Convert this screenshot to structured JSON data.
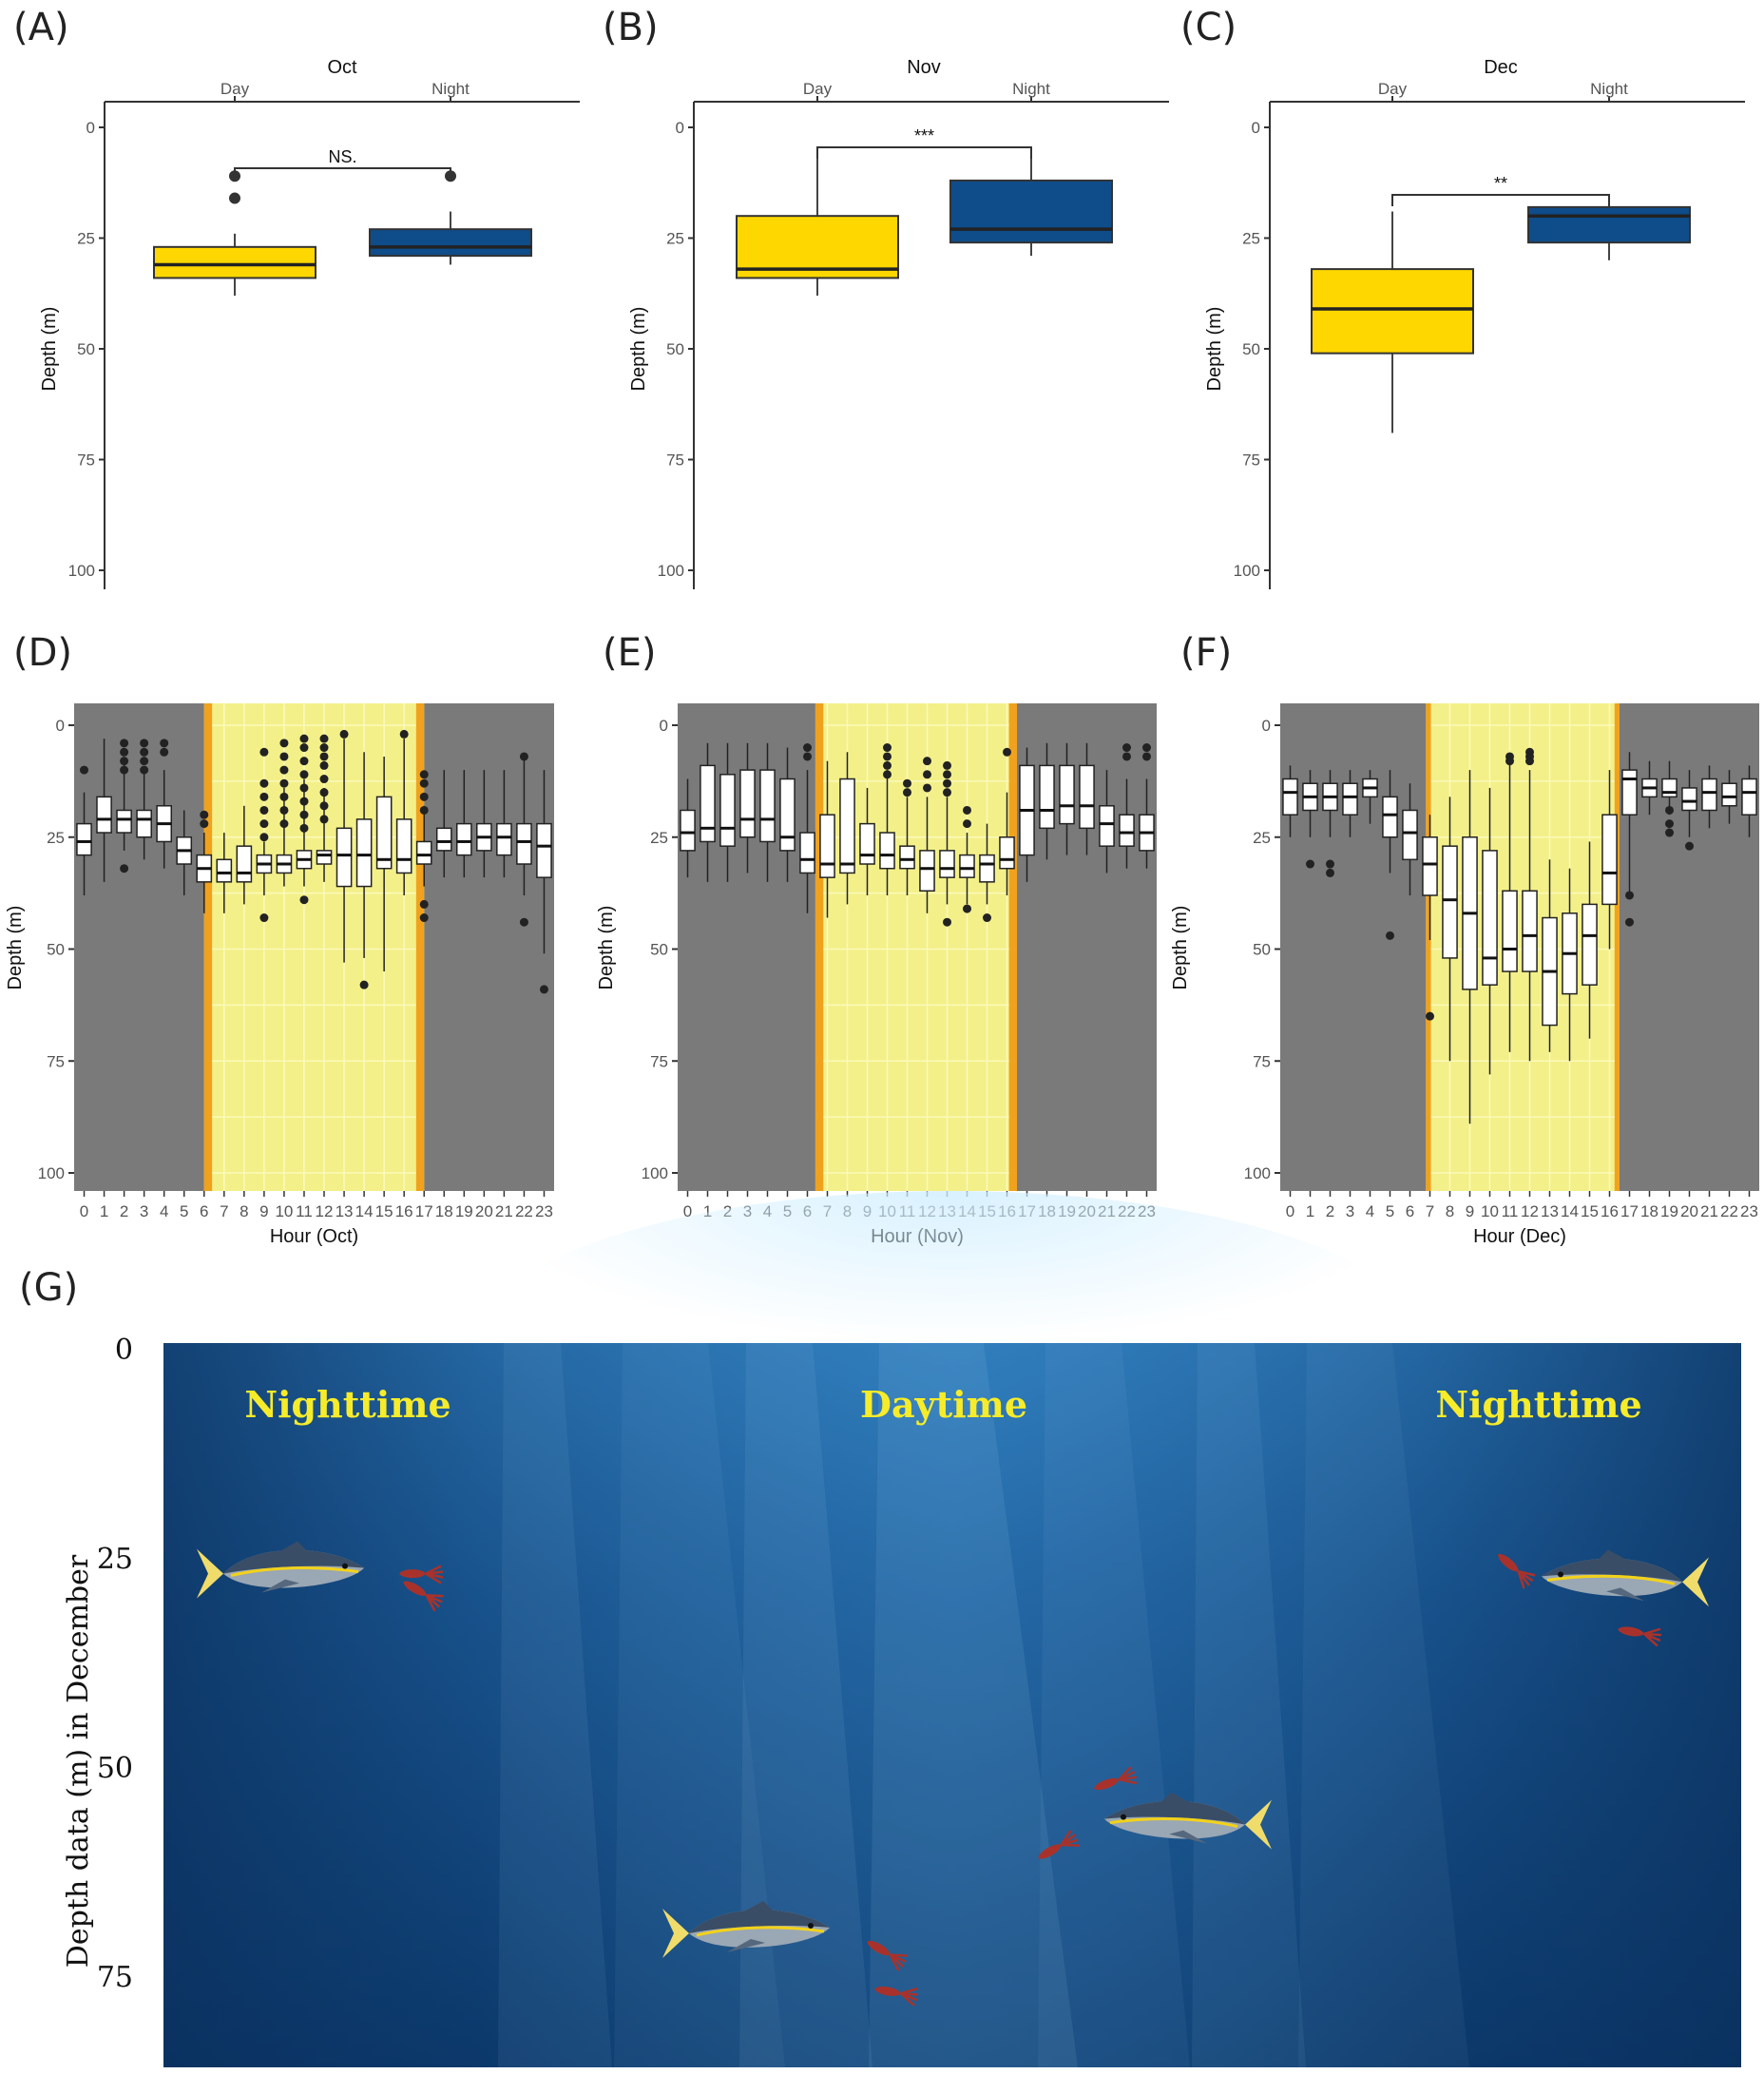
{
  "chart_data": [
    {
      "panel": "(A)",
      "type": "box",
      "title": "Oct",
      "categories": [
        "Day",
        "Night"
      ],
      "ylabel": "Depth (m)",
      "ylim": [
        0,
        100
      ],
      "yticks": [
        0,
        25,
        50,
        75,
        100
      ],
      "colors": [
        "#FFD700",
        "#0F4C8A"
      ],
      "significance": "NS.",
      "boxes": [
        {
          "q1": 27,
          "median": 31,
          "q3": 34,
          "whisker_low": 24,
          "whisker_high": 38,
          "outliers": [
            11,
            16
          ]
        },
        {
          "q1": 23,
          "median": 27,
          "q3": 29,
          "whisker_low": 19,
          "whisker_high": 31,
          "outliers": [
            11
          ]
        }
      ]
    },
    {
      "panel": "(B)",
      "type": "box",
      "title": "Nov",
      "categories": [
        "Day",
        "Night"
      ],
      "ylabel": "Depth (m)",
      "ylim": [
        0,
        100
      ],
      "yticks": [
        0,
        25,
        50,
        75,
        100
      ],
      "colors": [
        "#FFD700",
        "#0F4C8A"
      ],
      "significance": "***",
      "boxes": [
        {
          "q1": 20,
          "median": 32,
          "q3": 34,
          "whisker_low": 7,
          "whisker_high": 38,
          "outliers": []
        },
        {
          "q1": 12,
          "median": 23,
          "q3": 26,
          "whisker_low": 6,
          "whisker_high": 29,
          "outliers": []
        }
      ]
    },
    {
      "panel": "(C)",
      "type": "box",
      "title": "Dec",
      "categories": [
        "Day",
        "Night"
      ],
      "ylabel": "Depth (m)",
      "ylim": [
        0,
        100
      ],
      "yticks": [
        0,
        25,
        50,
        75,
        100
      ],
      "colors": [
        "#FFD700",
        "#0F4C8A"
      ],
      "significance": "**",
      "boxes": [
        {
          "q1": 32,
          "median": 41,
          "q3": 51,
          "whisker_low": 19,
          "whisker_high": 69,
          "outliers": []
        },
        {
          "q1": 18,
          "median": 20,
          "q3": 26,
          "whisker_low": 17,
          "whisker_high": 30,
          "outliers": []
        }
      ]
    },
    {
      "panel": "(D)",
      "type": "box",
      "xlabel": "Hour (Oct)",
      "ylabel": "Depth (m)",
      "ylim": [
        0,
        100
      ],
      "yticks": [
        0,
        25,
        50,
        75,
        100
      ],
      "categories": [
        "0",
        "1",
        "2",
        "3",
        "4",
        "5",
        "6",
        "7",
        "8",
        "9",
        "10",
        "11",
        "12",
        "13",
        "14",
        "15",
        "16",
        "17",
        "18",
        "19",
        "20",
        "21",
        "22",
        "23"
      ],
      "daylight_hours": [
        6.5,
        17.5
      ],
      "twilight_width_hours": 0.4,
      "boxes": [
        {
          "q1": 22,
          "median": 26,
          "q3": 29,
          "whisker_low": 15,
          "whisker_high": 38,
          "outliers": [
            10
          ]
        },
        {
          "q1": 16,
          "median": 21,
          "q3": 24,
          "whisker_low": 3,
          "whisker_high": 35,
          "outliers": []
        },
        {
          "q1": 19,
          "median": 21,
          "q3": 24,
          "whisker_low": 8,
          "whisker_high": 28,
          "outliers": [
            4,
            6,
            8,
            10,
            32
          ]
        },
        {
          "q1": 19,
          "median": 21,
          "q3": 25,
          "whisker_low": 10,
          "whisker_high": 30,
          "outliers": [
            4,
            6,
            8,
            10
          ]
        },
        {
          "q1": 18,
          "median": 22,
          "q3": 26,
          "whisker_low": 10,
          "whisker_high": 32,
          "outliers": [
            4,
            6
          ]
        },
        {
          "q1": 25,
          "median": 28,
          "q3": 31,
          "whisker_low": 19,
          "whisker_high": 38,
          "outliers": []
        },
        {
          "q1": 29,
          "median": 32,
          "q3": 35,
          "whisker_low": 24,
          "whisker_high": 42,
          "outliers": [
            20,
            22
          ]
        },
        {
          "q1": 30,
          "median": 33,
          "q3": 35,
          "whisker_low": 24,
          "whisker_high": 42,
          "outliers": []
        },
        {
          "q1": 27,
          "median": 33,
          "q3": 35,
          "whisker_low": 18,
          "whisker_high": 40,
          "outliers": []
        },
        {
          "q1": 29,
          "median": 31,
          "q3": 33,
          "whisker_low": 26,
          "whisker_high": 38,
          "outliers": [
            6,
            13,
            16,
            19,
            22,
            25,
            43
          ]
        },
        {
          "q1": 29,
          "median": 31,
          "q3": 33,
          "whisker_low": 14,
          "whisker_high": 36,
          "outliers": [
            4,
            7,
            10,
            13,
            16,
            19,
            22
          ]
        },
        {
          "q1": 28,
          "median": 30,
          "q3": 32,
          "whisker_low": 12,
          "whisker_high": 36,
          "outliers": [
            3,
            5,
            8,
            11,
            14,
            17,
            20,
            23,
            39
          ]
        },
        {
          "q1": 28,
          "median": 29,
          "q3": 31,
          "whisker_low": 14,
          "whisker_high": 35,
          "outliers": [
            3,
            5,
            7,
            9,
            12,
            15,
            18,
            21
          ]
        },
        {
          "q1": 23,
          "median": 29,
          "q3": 36,
          "whisker_low": 3,
          "whisker_high": 53,
          "outliers": [
            2
          ]
        },
        {
          "q1": 21,
          "median": 29,
          "q3": 36,
          "whisker_low": 6,
          "whisker_high": 52,
          "outliers": [
            58
          ]
        },
        {
          "q1": 16,
          "median": 30,
          "q3": 32,
          "whisker_low": 7,
          "whisker_high": 55,
          "outliers": []
        },
        {
          "q1": 21,
          "median": 30,
          "q3": 33,
          "whisker_low": 3,
          "whisker_high": 38,
          "outliers": [
            2
          ]
        },
        {
          "q1": 26,
          "median": 29,
          "q3": 31,
          "whisker_low": 18,
          "whisker_high": 36,
          "outliers": [
            11,
            13,
            16,
            19,
            40,
            43
          ]
        },
        {
          "q1": 23,
          "median": 26,
          "q3": 28,
          "whisker_low": 10,
          "whisker_high": 34,
          "outliers": []
        },
        {
          "q1": 22,
          "median": 26,
          "q3": 29,
          "whisker_low": 10,
          "whisker_high": 34,
          "outliers": []
        },
        {
          "q1": 22,
          "median": 25,
          "q3": 28,
          "whisker_low": 10,
          "whisker_high": 34,
          "outliers": []
        },
        {
          "q1": 22,
          "median": 25,
          "q3": 29,
          "whisker_low": 10,
          "whisker_high": 34,
          "outliers": []
        },
        {
          "q1": 22,
          "median": 26,
          "q3": 31,
          "whisker_low": 7,
          "whisker_high": 38,
          "outliers": [
            7,
            44
          ]
        },
        {
          "q1": 22,
          "median": 27,
          "q3": 34,
          "whisker_low": 10,
          "whisker_high": 51,
          "outliers": [
            59
          ]
        }
      ]
    },
    {
      "panel": "(E)",
      "type": "box",
      "xlabel": "Hour (Nov)",
      "ylabel": "Depth (m)",
      "ylim": [
        0,
        100
      ],
      "yticks": [
        0,
        25,
        50,
        75,
        100
      ],
      "categories": [
        "0",
        "1",
        "2",
        "3",
        "4",
        "5",
        "6",
        "7",
        "8",
        "9",
        "10",
        "11",
        "12",
        "13",
        "14",
        "15",
        "16",
        "17",
        "18",
        "19",
        "20",
        "21",
        "22",
        "23"
      ],
      "daylight_hours": [
        6.9,
        17.0
      ],
      "twilight_width_hours": 0.4,
      "boxes": [
        {
          "q1": 19,
          "median": 24,
          "q3": 28,
          "whisker_low": 12,
          "whisker_high": 34,
          "outliers": []
        },
        {
          "q1": 9,
          "median": 23,
          "q3": 26,
          "whisker_low": 4,
          "whisker_high": 35,
          "outliers": []
        },
        {
          "q1": 11,
          "median": 23,
          "q3": 27,
          "whisker_low": 4,
          "whisker_high": 35,
          "outliers": []
        },
        {
          "q1": 10,
          "median": 21,
          "q3": 25,
          "whisker_low": 4,
          "whisker_high": 33,
          "outliers": []
        },
        {
          "q1": 10,
          "median": 21,
          "q3": 26,
          "whisker_low": 4,
          "whisker_high": 35,
          "outliers": []
        },
        {
          "q1": 12,
          "median": 25,
          "q3": 28,
          "whisker_low": 5,
          "whisker_high": 35,
          "outliers": []
        },
        {
          "q1": 24,
          "median": 30,
          "q3": 33,
          "whisker_low": 10,
          "whisker_high": 42,
          "outliers": [
            5,
            7
          ]
        },
        {
          "q1": 20,
          "median": 31,
          "q3": 34,
          "whisker_low": 8,
          "whisker_high": 43,
          "outliers": []
        },
        {
          "q1": 12,
          "median": 31,
          "q3": 33,
          "whisker_low": 6,
          "whisker_high": 40,
          "outliers": []
        },
        {
          "q1": 22,
          "median": 29,
          "q3": 31,
          "whisker_low": 14,
          "whisker_high": 38,
          "outliers": []
        },
        {
          "q1": 24,
          "median": 29,
          "q3": 32,
          "whisker_low": 10,
          "whisker_high": 38,
          "outliers": [
            5,
            7,
            9,
            11
          ]
        },
        {
          "q1": 27,
          "median": 30,
          "q3": 32,
          "whisker_low": 16,
          "whisker_high": 38,
          "outliers": [
            13,
            15
          ]
        },
        {
          "q1": 28,
          "median": 32,
          "q3": 37,
          "whisker_low": 16,
          "whisker_high": 42,
          "outliers": [
            8,
            11,
            14
          ]
        },
        {
          "q1": 28,
          "median": 32,
          "q3": 34,
          "whisker_low": 16,
          "whisker_high": 40,
          "outliers": [
            9,
            11,
            13,
            15,
            44
          ]
        },
        {
          "q1": 29,
          "median": 32,
          "q3": 34,
          "whisker_low": 24,
          "whisker_high": 40,
          "outliers": [
            19,
            22,
            41
          ]
        },
        {
          "q1": 29,
          "median": 31,
          "q3": 35,
          "whisker_low": 22,
          "whisker_high": 40,
          "outliers": [
            43
          ]
        },
        {
          "q1": 25,
          "median": 30,
          "q3": 32,
          "whisker_low": 15,
          "whisker_high": 38,
          "outliers": [
            6
          ]
        },
        {
          "q1": 9,
          "median": 19,
          "q3": 29,
          "whisker_low": 5,
          "whisker_high": 35,
          "outliers": []
        },
        {
          "q1": 9,
          "median": 19,
          "q3": 23,
          "whisker_low": 4,
          "whisker_high": 30,
          "outliers": []
        },
        {
          "q1": 9,
          "median": 18,
          "q3": 22,
          "whisker_low": 4,
          "whisker_high": 29,
          "outliers": []
        },
        {
          "q1": 9,
          "median": 18,
          "q3": 23,
          "whisker_low": 4,
          "whisker_high": 29,
          "outliers": []
        },
        {
          "q1": 18,
          "median": 22,
          "q3": 27,
          "whisker_low": 10,
          "whisker_high": 33,
          "outliers": []
        },
        {
          "q1": 20,
          "median": 24,
          "q3": 27,
          "whisker_low": 12,
          "whisker_high": 32,
          "outliers": [
            5,
            7
          ]
        },
        {
          "q1": 20,
          "median": 24,
          "q3": 28,
          "whisker_low": 12,
          "whisker_high": 32,
          "outliers": [
            5,
            7
          ]
        }
      ]
    },
    {
      "panel": "(F)",
      "type": "box",
      "xlabel": "Hour (Dec)",
      "ylabel": "Depth (m)",
      "ylim": [
        0,
        100
      ],
      "yticks": [
        0,
        25,
        50,
        75,
        100
      ],
      "categories": [
        "0",
        "1",
        "2",
        "3",
        "4",
        "5",
        "6",
        "7",
        "8",
        "9",
        "10",
        "11",
        "12",
        "13",
        "14",
        "15",
        "16",
        "17",
        "18",
        "19",
        "20",
        "21",
        "22",
        "23"
      ],
      "daylight_hours": [
        7.3,
        17.0
      ],
      "twilight_width_hours": 0.25,
      "boxes": [
        {
          "q1": 12,
          "median": 15,
          "q3": 20,
          "whisker_low": 9,
          "whisker_high": 25,
          "outliers": []
        },
        {
          "q1": 13,
          "median": 16,
          "q3": 19,
          "whisker_low": 10,
          "whisker_high": 25,
          "outliers": [
            31
          ]
        },
        {
          "q1": 13,
          "median": 16,
          "q3": 19,
          "whisker_low": 10,
          "whisker_high": 25,
          "outliers": [
            31,
            33
          ]
        },
        {
          "q1": 13,
          "median": 16,
          "q3": 20,
          "whisker_low": 10,
          "whisker_high": 25,
          "outliers": []
        },
        {
          "q1": 12,
          "median": 14,
          "q3": 16,
          "whisker_low": 10,
          "whisker_high": 22,
          "outliers": []
        },
        {
          "q1": 16,
          "median": 20,
          "q3": 25,
          "whisker_low": 10,
          "whisker_high": 33,
          "outliers": [
            47
          ]
        },
        {
          "q1": 19,
          "median": 24,
          "q3": 30,
          "whisker_low": 13,
          "whisker_high": 38,
          "outliers": []
        },
        {
          "q1": 25,
          "median": 31,
          "q3": 38,
          "whisker_low": 20,
          "whisker_high": 48,
          "outliers": [
            65
          ]
        },
        {
          "q1": 27,
          "median": 39,
          "q3": 52,
          "whisker_low": 16,
          "whisker_high": 75,
          "outliers": []
        },
        {
          "q1": 25,
          "median": 42,
          "q3": 59,
          "whisker_low": 10,
          "whisker_high": 89,
          "outliers": []
        },
        {
          "q1": 28,
          "median": 52,
          "q3": 58,
          "whisker_low": 14,
          "whisker_high": 78,
          "outliers": []
        },
        {
          "q1": 37,
          "median": 50,
          "q3": 55,
          "whisker_low": 8,
          "whisker_high": 73,
          "outliers": [
            7,
            8
          ]
        },
        {
          "q1": 37,
          "median": 47,
          "q3": 55,
          "whisker_low": 10,
          "whisker_high": 75,
          "outliers": [
            6,
            7,
            8
          ]
        },
        {
          "q1": 43,
          "median": 55,
          "q3": 67,
          "whisker_low": 30,
          "whisker_high": 73,
          "outliers": []
        },
        {
          "q1": 42,
          "median": 51,
          "q3": 60,
          "whisker_low": 32,
          "whisker_high": 75,
          "outliers": []
        },
        {
          "q1": 40,
          "median": 47,
          "q3": 58,
          "whisker_low": 26,
          "whisker_high": 70,
          "outliers": []
        },
        {
          "q1": 20,
          "median": 33,
          "q3": 40,
          "whisker_low": 10,
          "whisker_high": 50,
          "outliers": []
        },
        {
          "q1": 10,
          "median": 12,
          "q3": 20,
          "whisker_low": 6,
          "whisker_high": 38,
          "outliers": [
            38,
            44
          ]
        },
        {
          "q1": 12,
          "median": 14,
          "q3": 16,
          "whisker_low": 8,
          "whisker_high": 20,
          "outliers": []
        },
        {
          "q1": 12,
          "median": 15,
          "q3": 16,
          "whisker_low": 8,
          "whisker_high": 20,
          "outliers": [
            19,
            22,
            24
          ]
        },
        {
          "q1": 14,
          "median": 17,
          "q3": 19,
          "whisker_low": 10,
          "whisker_high": 25,
          "outliers": [
            27
          ]
        },
        {
          "q1": 12,
          "median": 15,
          "q3": 19,
          "whisker_low": 9,
          "whisker_high": 23,
          "outliers": []
        },
        {
          "q1": 13,
          "median": 16,
          "q3": 18,
          "whisker_low": 10,
          "whisker_high": 22,
          "outliers": []
        },
        {
          "q1": 12,
          "median": 15,
          "q3": 20,
          "whisker_low": 9,
          "whisker_high": 25,
          "outliers": []
        }
      ]
    }
  ],
  "illustration": {
    "panel": "(G)",
    "ylabel": "Depth data (m) in December",
    "yticks": [
      0,
      25,
      50,
      75
    ],
    "labels": [
      "Nighttime",
      "Daytime",
      "Nighttime"
    ],
    "fish_depths": [
      27,
      28,
      57,
      70
    ],
    "squid_depths": [
      27,
      29,
      26,
      34,
      52,
      60,
      72,
      77
    ]
  }
}
